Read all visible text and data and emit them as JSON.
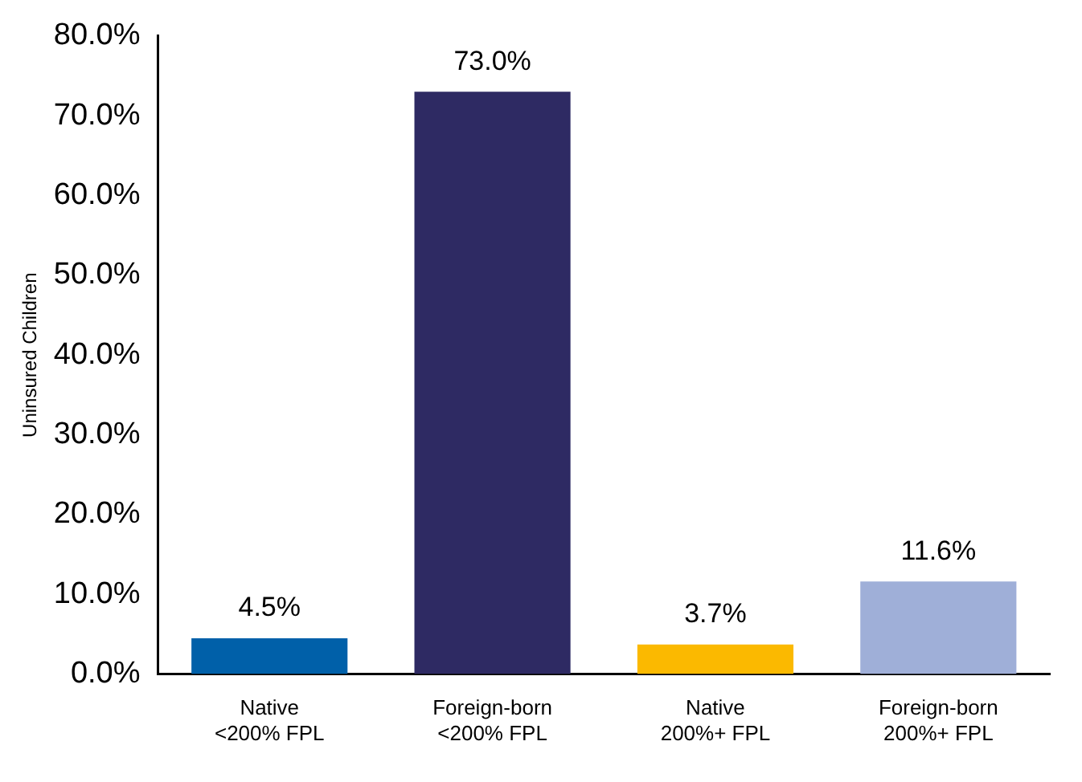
{
  "chart_data": {
    "type": "bar",
    "ylabel": "Uninsured Children",
    "categories": [
      "Native\n<200% FPL",
      "Foreign-born\n<200% FPL",
      "Native\n200%+ FPL",
      "Foreign-born\n200%+ FPL"
    ],
    "values": [
      4.5,
      73.0,
      3.7,
      11.6
    ],
    "colors": [
      "#0060a9",
      "#2e2a63",
      "#fbb900",
      "#9fafd8"
    ],
    "value_labels": [
      "4.5%",
      "73.0%",
      "3.7%",
      "11.6%"
    ],
    "ylim": [
      0,
      80
    ],
    "yticks": [
      {
        "value": 0,
        "label": "0.0%"
      },
      {
        "value": 10,
        "label": "10.0%"
      },
      {
        "value": 20,
        "label": "20.0%"
      },
      {
        "value": 30,
        "label": "30.0%"
      },
      {
        "value": 40,
        "label": "40.0%"
      },
      {
        "value": 50,
        "label": "50.0%"
      },
      {
        "value": 60,
        "label": "60.0%"
      },
      {
        "value": 70,
        "label": "70.0%"
      },
      {
        "value": 80,
        "label": "80.0%"
      }
    ],
    "grid": false,
    "legend": false
  }
}
